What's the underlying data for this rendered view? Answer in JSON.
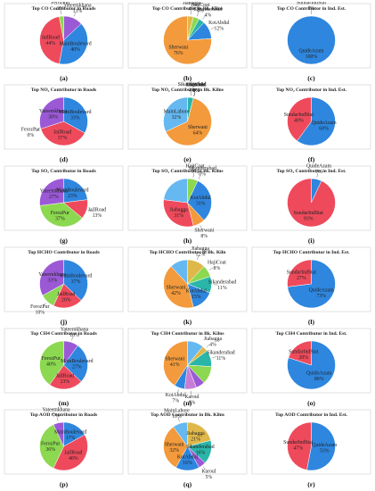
{
  "colors": {
    "blue": "#2e86de",
    "red": "#ee4a5c",
    "green": "#8cd850",
    "purple": "#9b59d6",
    "orange": "#f39a3c",
    "teal": "#2ab5a9",
    "lightblue": "#66b8f0",
    "gold": "#e0b84a"
  },
  "chart_data": [
    {
      "type": "pie",
      "title": "Top CO Contributor in Roads",
      "caption": "(a)",
      "slices": [
        {
          "name": "Yateemkhana",
          "value": 13,
          "label": "13%",
          "color": "#9b59d6"
        },
        {
          "name": "MainBoulevard",
          "value": 40,
          "label": "40%",
          "color": "#2e86de"
        },
        {
          "name": "JailRoad",
          "value": 44,
          "label": "44%",
          "color": "#ee4a5c"
        },
        {
          "name": "FerozPur",
          "value": 3,
          "label": "3%",
          "color": "#8cd850"
        }
      ]
    },
    {
      "type": "pie",
      "title": "Top CO Contributor in Bk. Kilns",
      "caption": "(b)",
      "slices": [
        {
          "name": "Jiabagga",
          "value": 4,
          "label": "4%",
          "color": "#e0b84a"
        },
        {
          "name": "HajiCoat",
          "value": 4,
          "label": "4%",
          "color": "#8cd850"
        },
        {
          "name": "Sikanderabad",
          "value": 4,
          "label": "4%",
          "color": "#2ab5a9"
        },
        {
          "name": "KotAbdul",
          "value": 12,
          "label": "12%",
          "color": "#2e86de"
        },
        {
          "name": "Sherwani",
          "value": 76,
          "label": "76%",
          "color": "#f39a3c"
        }
      ]
    },
    {
      "type": "pie",
      "title": "Top CO Contributor in Ind. Est.",
      "caption": "(c)",
      "slices": [
        {
          "name": "QuideAzam",
          "value": 100,
          "label": "100%",
          "color": "#2e86de"
        },
        {
          "name": "SundarIndStat",
          "value": 0,
          "label": "0%",
          "color": "#ee4a5c"
        }
      ]
    },
    {
      "type": "pie",
      "title": "Top NO₂ Contributor in Roads",
      "caption": "(d)",
      "slices": [
        {
          "name": "MainBoulevard",
          "value": 33,
          "label": "33%",
          "color": "#2e86de"
        },
        {
          "name": "JailRoad",
          "value": 37,
          "label": "37%",
          "color": "#ee4a5c"
        },
        {
          "name": "FerozPur",
          "value": 0,
          "label": "0%",
          "color": "#8cd850"
        },
        {
          "name": "Yateemkhana",
          "value": 30,
          "label": "30%",
          "color": "#9b59d6"
        }
      ]
    },
    {
      "type": "pie",
      "title": "Top NO₂ Contributor in Bk. Kilns",
      "caption": "(e)",
      "slices": [
        {
          "name": "Sikanderabad",
          "value": 4,
          "label": "4%",
          "color": "#2ab5a9"
        },
        {
          "name": "HajiCoat",
          "value": 0,
          "label": "0%",
          "color": "#8cd850"
        },
        {
          "name": "Karoul",
          "value": 0,
          "label": "0%",
          "color": "#9b59d6"
        },
        {
          "name": "KotAbdul",
          "value": 0,
          "label": "0%",
          "color": "#2e86de"
        },
        {
          "name": "Sherwani",
          "value": 64,
          "label": "64%",
          "color": "#f39a3c"
        },
        {
          "name": "MainLahore",
          "value": 32,
          "label": "32%",
          "color": "#66b8f0"
        }
      ]
    },
    {
      "type": "pie",
      "title": "Top NO₂ Contributor in Ind. Est.",
      "caption": "(f)",
      "slices": [
        {
          "name": "QuideAzam",
          "value": 60,
          "label": "60%",
          "color": "#2e86de"
        },
        {
          "name": "SundarIndStat",
          "value": 40,
          "label": "40%",
          "color": "#ee4a5c"
        }
      ]
    },
    {
      "type": "pie",
      "title": "Top SO₂ Contributor in Roads",
      "caption": "(g)",
      "slices": [
        {
          "name": "MainBoulevard",
          "value": 23,
          "label": "23%",
          "color": "#2e86de"
        },
        {
          "name": "JailRoad",
          "value": 13,
          "label": "13%",
          "color": "#ee4a5c"
        },
        {
          "name": "FerozPur",
          "value": 37,
          "label": "37%",
          "color": "#8cd850"
        },
        {
          "name": "Yateemkhana",
          "value": 27,
          "label": "27%",
          "color": "#9b59d6"
        }
      ]
    },
    {
      "type": "pie",
      "title": "Top SO₂ Contributor in Bk. Kilns",
      "caption": "(h)",
      "slices": [
        {
          "name": "HajiCoat",
          "value": 7,
          "label": "7%",
          "color": "#8cd850"
        },
        {
          "name": "Sikanderabad",
          "value": 0,
          "label": "0%",
          "color": "#2ab5a9"
        },
        {
          "name": "KotAbdul",
          "value": 31,
          "label": "31%",
          "color": "#2e86de"
        },
        {
          "name": "Sherwani",
          "value": 8,
          "label": "8%",
          "color": "#f39a3c"
        },
        {
          "name": "Jiabagga",
          "value": 31,
          "label": "31%",
          "color": "#ee4a5c"
        },
        {
          "name": "MainLahore",
          "value": 23,
          "label": "",
          "color": "#66b8f0"
        }
      ]
    },
    {
      "type": "pie",
      "title": "Top SO₂ Contributor in Ind. Est.",
      "caption": "(i)",
      "slices": [
        {
          "name": "QuideAzam",
          "value": 7,
          "label": "7%",
          "color": "#2e86de"
        },
        {
          "name": "SundarIndStat",
          "value": 93,
          "label": "93%",
          "color": "#ee4a5c"
        }
      ]
    },
    {
      "type": "pie",
      "title": "Top HCHO Contributor in Roads",
      "caption": "(j)",
      "slices": [
        {
          "name": "MainBoulevard",
          "value": 37,
          "label": "37%",
          "color": "#2e86de"
        },
        {
          "name": "JailRoad",
          "value": 20,
          "label": "20%",
          "color": "#ee4a5c"
        },
        {
          "name": "FerozPur",
          "value": 10,
          "label": "10%",
          "color": "#8cd850"
        },
        {
          "name": "Yateemkhana",
          "value": 33,
          "label": "33%",
          "color": "#9b59d6"
        }
      ]
    },
    {
      "type": "pie",
      "title": "Top HCHO Contributor in Bk. Kiln",
      "caption": "(k)",
      "slices": [
        {
          "name": "Jiabagga",
          "value": 12,
          "label": "12%",
          "color": "#e0b84a"
        },
        {
          "name": "HajiCoat",
          "value": 8,
          "label": "8%",
          "color": "#8cd850"
        },
        {
          "name": "Sikanderabad",
          "value": 11,
          "label": "11%",
          "color": "#2ab5a9"
        },
        {
          "name": "KotAbdul",
          "value": 15,
          "label": "15%",
          "color": "#2e86de"
        },
        {
          "name": "Sherwani",
          "value": 42,
          "label": "42%",
          "color": "#f39a3c"
        },
        {
          "name": "MainLahore",
          "value": 12,
          "label": "",
          "color": "#66b8f0"
        }
      ]
    },
    {
      "type": "pie",
      "title": "Top HCHO Contributor in Ind. Est.",
      "caption": "(l)",
      "slices": [
        {
          "name": "QuideAzam",
          "value": 73,
          "label": "73%",
          "color": "#2e86de"
        },
        {
          "name": "SundarIndStat",
          "value": 27,
          "label": "27%",
          "color": "#ee4a5c"
        }
      ]
    },
    {
      "type": "pie",
      "title": "Top CH4 Contributor in Roads",
      "caption": "(m)",
      "slices": [
        {
          "name": "Yateemkhana",
          "value": 10,
          "label": "10%",
          "color": "#9b59d6"
        },
        {
          "name": "MainBoulevard",
          "value": 27,
          "label": "27%",
          "color": "#2e86de"
        },
        {
          "name": "JailRoad",
          "value": 23,
          "label": "23%",
          "color": "#ee4a5c"
        },
        {
          "name": "FerozPur",
          "value": 40,
          "label": "40%",
          "color": "#8cd850"
        }
      ]
    },
    {
      "type": "pie",
      "title": "Top CH4 Contributor in Bk. Kilns",
      "caption": "(n)",
      "slices": [
        {
          "name": "MainLahore",
          "value": 11,
          "label": "",
          "color": "#66b8f0"
        },
        {
          "name": "Jiabagga",
          "value": 4,
          "label": "4%",
          "color": "#e0b84a"
        },
        {
          "name": "Sikanderabad",
          "value": 11,
          "label": "11%",
          "color": "#2ab5a9"
        },
        {
          "name": "HajiCoat",
          "value": 12,
          "label": "",
          "color": "#8cd850"
        },
        {
          "name": "Purple",
          "value": 6,
          "label": "",
          "color": "#9b59d6"
        },
        {
          "name": "Karoul",
          "value": 8,
          "label": "8%",
          "color": "#c77dd6"
        },
        {
          "name": "KotAbdul",
          "value": 7,
          "label": "7%",
          "color": "#2e86de"
        },
        {
          "name": "Sherwani",
          "value": 41,
          "label": "41%",
          "color": "#f39a3c"
        }
      ]
    },
    {
      "type": "pie",
      "title": "Top CH4 Contributor in Ind. Est.",
      "caption": "(o)",
      "slices": [
        {
          "name": "QuidoAzam",
          "value": 80,
          "label": "80%",
          "color": "#2e86de"
        },
        {
          "name": "SundarIndStat",
          "value": 20,
          "label": "20%",
          "color": "#ee4a5c"
        }
      ]
    },
    {
      "type": "pie",
      "title": "Top AOD Contributor in Roads",
      "caption": "(p)",
      "slices": [
        {
          "name": "MainBoulevard",
          "value": 17,
          "label": "17%",
          "color": "#2e86de"
        },
        {
          "name": "JailRoad",
          "value": 40,
          "label": "40%",
          "color": "#ee4a5c"
        },
        {
          "name": "FerozPur",
          "value": 36,
          "label": "36%",
          "color": "#8cd850"
        },
        {
          "name": "Yateemkhana",
          "value": 7,
          "label": "7%",
          "color": "#9b59d6"
        }
      ]
    },
    {
      "type": "pie",
      "title": "Top AOD Contributor in Bk. Kilns",
      "caption": "(q)",
      "slices": [
        {
          "name": "Jiabagga",
          "value": 21,
          "label": "21%",
          "color": "#e0b84a"
        },
        {
          "name": "Sikanderabad",
          "value": 16,
          "label": "16%",
          "color": "#2ab5a9"
        },
        {
          "name": "Karoul",
          "value": 5,
          "label": "5%",
          "color": "#9b59d6"
        },
        {
          "name": "KotAbdul",
          "value": 16,
          "label": "16%",
          "color": "#2e86de"
        },
        {
          "name": "Sherwani",
          "value": 32,
          "label": "32%",
          "color": "#f39a3c"
        },
        {
          "name": "MainLahore",
          "value": 10,
          "label": "10%",
          "color": "#66b8f0"
        }
      ]
    },
    {
      "type": "pie",
      "title": "Top AOD Contributor in Ind. Est.",
      "caption": "(r)",
      "slices": [
        {
          "name": "QuideAzam",
          "value": 53,
          "label": "53%",
          "color": "#2e86de"
        },
        {
          "name": "SundarIndStat",
          "value": 47,
          "label": "47%",
          "color": "#ee4a5c"
        }
      ]
    }
  ]
}
